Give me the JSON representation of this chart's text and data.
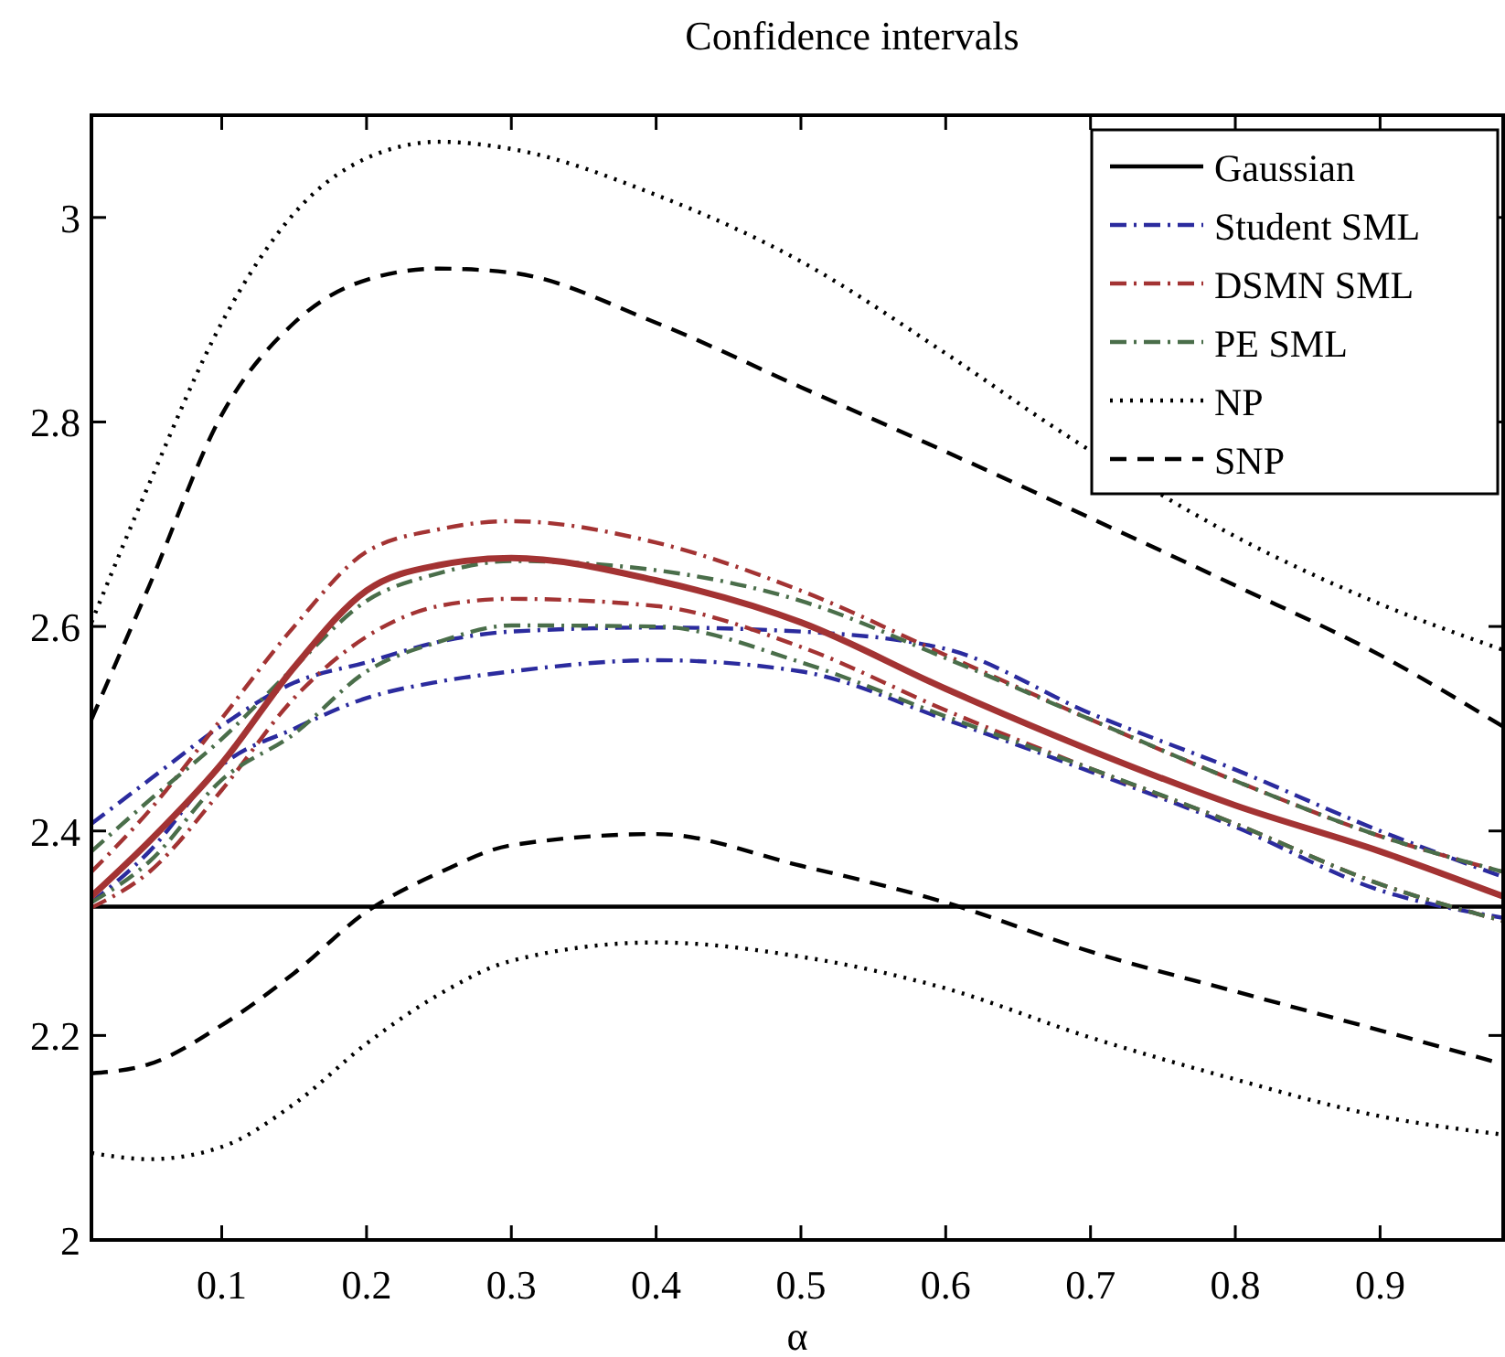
{
  "chart_data": {
    "type": "line",
    "title": "Confidence intervals",
    "xlabel": "α",
    "x": [
      0.01,
      0.05,
      0.1,
      0.15,
      0.2,
      0.25,
      0.3,
      0.4,
      0.5,
      0.6,
      0.7,
      0.8,
      0.9,
      0.985
    ],
    "xlim": [
      0.01,
      0.985
    ],
    "xticks": [
      0.1,
      0.2,
      0.3,
      0.4,
      0.5,
      0.6,
      0.7,
      0.8,
      0.9
    ],
    "ylim": [
      2,
      3.1
    ],
    "yticks": [
      2,
      2.2,
      2.4,
      2.6,
      2.8,
      3
    ],
    "grid": false,
    "legend": "top right",
    "marker": "none",
    "series": [
      {
        "name": "Gaussian",
        "color": "#000000",
        "line_style": "solid",
        "values": [
          2.326,
          2.326,
          2.326,
          2.326,
          2.326,
          2.326,
          2.326,
          2.326,
          2.326,
          2.326,
          2.326,
          2.326,
          2.326,
          2.326
        ]
      },
      {
        "name": "Student SML",
        "color": "#2b2b9e",
        "line_style": "dashdot",
        "values": [
          2.407,
          2.45,
          2.503,
          2.545,
          2.565,
          2.585,
          2.595,
          2.599,
          2.595,
          2.578,
          2.515,
          2.46,
          2.4,
          2.355
        ]
      },
      {
        "color": "#2b2b9e",
        "line_style": "dashdot",
        "values": [
          2.33,
          2.38,
          2.464,
          2.5,
          2.53,
          2.546,
          2.556,
          2.567,
          2.556,
          2.509,
          2.458,
          2.404,
          2.342,
          2.315
        ]
      },
      {
        "name": "DSMN SML",
        "color": "#a33333",
        "line_style": "dashdot",
        "values": [
          2.36,
          2.42,
          2.51,
          2.6,
          2.673,
          2.695,
          2.703,
          2.682,
          2.635,
          2.572,
          2.509,
          2.449,
          2.395,
          2.36
        ]
      },
      {
        "color": "#a33333",
        "line_style": "dashdot",
        "values": [
          2.325,
          2.36,
          2.44,
          2.53,
          2.59,
          2.62,
          2.627,
          2.62,
          2.58,
          2.518,
          2.461,
          2.407,
          2.348,
          2.312
        ]
      },
      {
        "name": "PE SML",
        "color": "#4a6e4a",
        "line_style": "dashdot",
        "values": [
          2.38,
          2.43,
          2.49,
          2.56,
          2.625,
          2.652,
          2.664,
          2.655,
          2.625,
          2.569,
          2.509,
          2.449,
          2.395,
          2.36
        ]
      },
      {
        "color": "#4a6e4a",
        "line_style": "dashdot",
        "values": [
          2.33,
          2.37,
          2.45,
          2.495,
          2.556,
          2.585,
          2.601,
          2.6,
          2.565,
          2.512,
          2.461,
          2.407,
          2.348,
          2.312
        ]
      },
      {
        "name": "NP",
        "color": "#000000",
        "line_style": "dotted",
        "x": [
          0.01,
          0.05,
          0.1,
          0.15,
          0.2,
          0.25,
          0.3,
          0.4,
          0.5,
          0.6,
          0.68,
          0.8,
          0.9,
          0.985
        ],
        "values": [
          2.604,
          2.74,
          2.897,
          3.004,
          3.058,
          3.074,
          3.067,
          3.022,
          2.957,
          2.867,
          2.79,
          2.688,
          2.622,
          2.577
        ]
      },
      {
        "color": "#000000",
        "line_style": "dotted",
        "values": [
          2.085,
          2.079,
          2.091,
          2.133,
          2.192,
          2.24,
          2.273,
          2.291,
          2.277,
          2.246,
          2.198,
          2.157,
          2.121,
          2.103
        ]
      },
      {
        "name": "SNP",
        "color": "#000000",
        "line_style": "dashed",
        "values": [
          2.509,
          2.64,
          2.807,
          2.897,
          2.939,
          2.95,
          2.946,
          2.897,
          2.834,
          2.771,
          2.706,
          2.64,
          2.572,
          2.502
        ]
      },
      {
        "color": "#000000",
        "line_style": "dashed",
        "values": [
          2.163,
          2.172,
          2.21,
          2.261,
          2.321,
          2.359,
          2.386,
          2.397,
          2.366,
          2.33,
          2.282,
          2.243,
          2.205,
          2.172
        ]
      },
      {
        "color": "#a33333",
        "line_style": "solid",
        "values": [
          2.336,
          2.39,
          2.466,
          2.56,
          2.635,
          2.66,
          2.667,
          2.645,
          2.604,
          2.539,
          2.479,
          2.425,
          2.38,
          2.336
        ]
      }
    ]
  }
}
